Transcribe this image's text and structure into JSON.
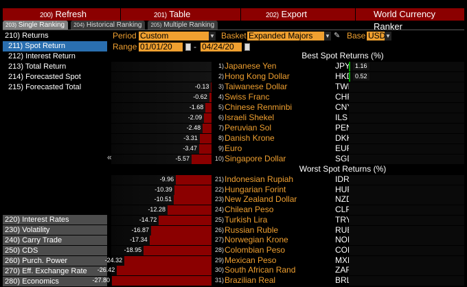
{
  "toolbar": {
    "refresh": {
      "num": "200)",
      "label": "Refresh"
    },
    "table": {
      "num": "201)",
      "label": "Table"
    },
    "export": {
      "num": "202)",
      "label": "Export"
    },
    "title": "World Currency Ranker"
  },
  "tabs": [
    {
      "num": "203)",
      "label": "Single Ranking",
      "active": true
    },
    {
      "num": "204)",
      "label": "Historical Ranking",
      "active": false
    },
    {
      "num": "205)",
      "label": "Multiple Ranking",
      "active": false
    }
  ],
  "menu": {
    "top": [
      {
        "label": "210) Returns",
        "selected": false,
        "sub": false
      },
      {
        "label": "211) Spot Return",
        "selected": true,
        "sub": true
      },
      {
        "label": "212) Interest Return",
        "selected": false,
        "sub": true
      },
      {
        "label": "213) Total Return",
        "selected": false,
        "sub": true
      },
      {
        "label": "214) Forecasted Spot",
        "selected": false,
        "sub": true
      },
      {
        "label": "215) Forecasted Total",
        "selected": false,
        "sub": true
      }
    ],
    "bottom": [
      "220) Interest Rates",
      "230) Volatility",
      "240) Carry Trade",
      "250) CDS",
      "260) Purch. Power",
      "270) Eff. Exchange Rate",
      "280) Economics"
    ]
  },
  "controls": {
    "period_label": "Period",
    "period_value": "Custom",
    "basket_label": "Basket",
    "basket_value": "Expanded Majors",
    "base_label": "Base",
    "base_value": "USD",
    "range_label": "Range",
    "range_start": "01/01/20",
    "range_sep": "-",
    "range_end": "04/24/20"
  },
  "colors": {
    "accent": "#f0a030",
    "negative_bar": "#8b0000",
    "positive_bar": "#00a000",
    "selected": "#2a6fb0"
  },
  "table": {
    "best_header": "Best Spot Returns (%)",
    "worst_header": "Worst Spot Returns (%)",
    "best": [
      {
        "rank": "1)",
        "name": "Japanese Yen",
        "code": "JPY",
        "value": 1.16,
        "label": "1.16"
      },
      {
        "rank": "2)",
        "name": "Hong Kong Dollar",
        "code": "HKD",
        "value": 0.52,
        "label": "0.52"
      },
      {
        "rank": "3)",
        "name": "Taiwanese Dollar",
        "code": "TWD",
        "value": -0.13,
        "label": "-0.13"
      },
      {
        "rank": "4)",
        "name": "Swiss Franc",
        "code": "CHF",
        "value": -0.62,
        "label": "-0.62"
      },
      {
        "rank": "5)",
        "name": "Chinese Renminbi",
        "code": "CNY",
        "value": -1.68,
        "label": "-1.68"
      },
      {
        "rank": "6)",
        "name": "Israeli Shekel",
        "code": "ILS",
        "value": -2.09,
        "label": "-2.09"
      },
      {
        "rank": "7)",
        "name": "Peruvian Sol",
        "code": "PEN",
        "value": -2.48,
        "label": "-2.48"
      },
      {
        "rank": "8)",
        "name": "Danish Krone",
        "code": "DKK",
        "value": -3.31,
        "label": "-3.31"
      },
      {
        "rank": "9)",
        "name": "Euro",
        "code": "EUR",
        "value": -3.47,
        "label": "-3.47"
      },
      {
        "rank": "10)",
        "name": "Singapore Dollar",
        "code": "SGD",
        "value": -5.57,
        "label": "-5.57"
      }
    ],
    "worst": [
      {
        "rank": "21)",
        "name": "Indonesian Rupiah",
        "code": "IDR",
        "value": -9.96,
        "label": "-9.96"
      },
      {
        "rank": "22)",
        "name": "Hungarian Forint",
        "code": "HUF",
        "value": -10.39,
        "label": "-10.39"
      },
      {
        "rank": "23)",
        "name": "New Zealand Dollar",
        "code": "NZD",
        "value": -10.51,
        "label": "-10.51"
      },
      {
        "rank": "24)",
        "name": "Chilean Peso",
        "code": "CLP",
        "value": -12.28,
        "label": "-12.28"
      },
      {
        "rank": "25)",
        "name": "Turkish Lira",
        "code": "TRY",
        "value": -14.72,
        "label": "-14.72"
      },
      {
        "rank": "26)",
        "name": "Russian Ruble",
        "code": "RUB",
        "value": -16.87,
        "label": "-16.87"
      },
      {
        "rank": "27)",
        "name": "Norwegian Krone",
        "code": "NOK",
        "value": -17.34,
        "label": "-17.34"
      },
      {
        "rank": "28)",
        "name": "Colombian Peso",
        "code": "COP",
        "value": -18.95,
        "label": "-18.95"
      },
      {
        "rank": "29)",
        "name": "Mexican Peso",
        "code": "MXN",
        "value": -24.32,
        "label": "-24.32"
      },
      {
        "rank": "30)",
        "name": "South African Rand",
        "code": "ZAR",
        "value": -26.42,
        "label": "-26.42"
      },
      {
        "rank": "31)",
        "name": "Brazilian Real",
        "code": "BRL",
        "value": -27.8,
        "label": "-27.80"
      }
    ]
  }
}
